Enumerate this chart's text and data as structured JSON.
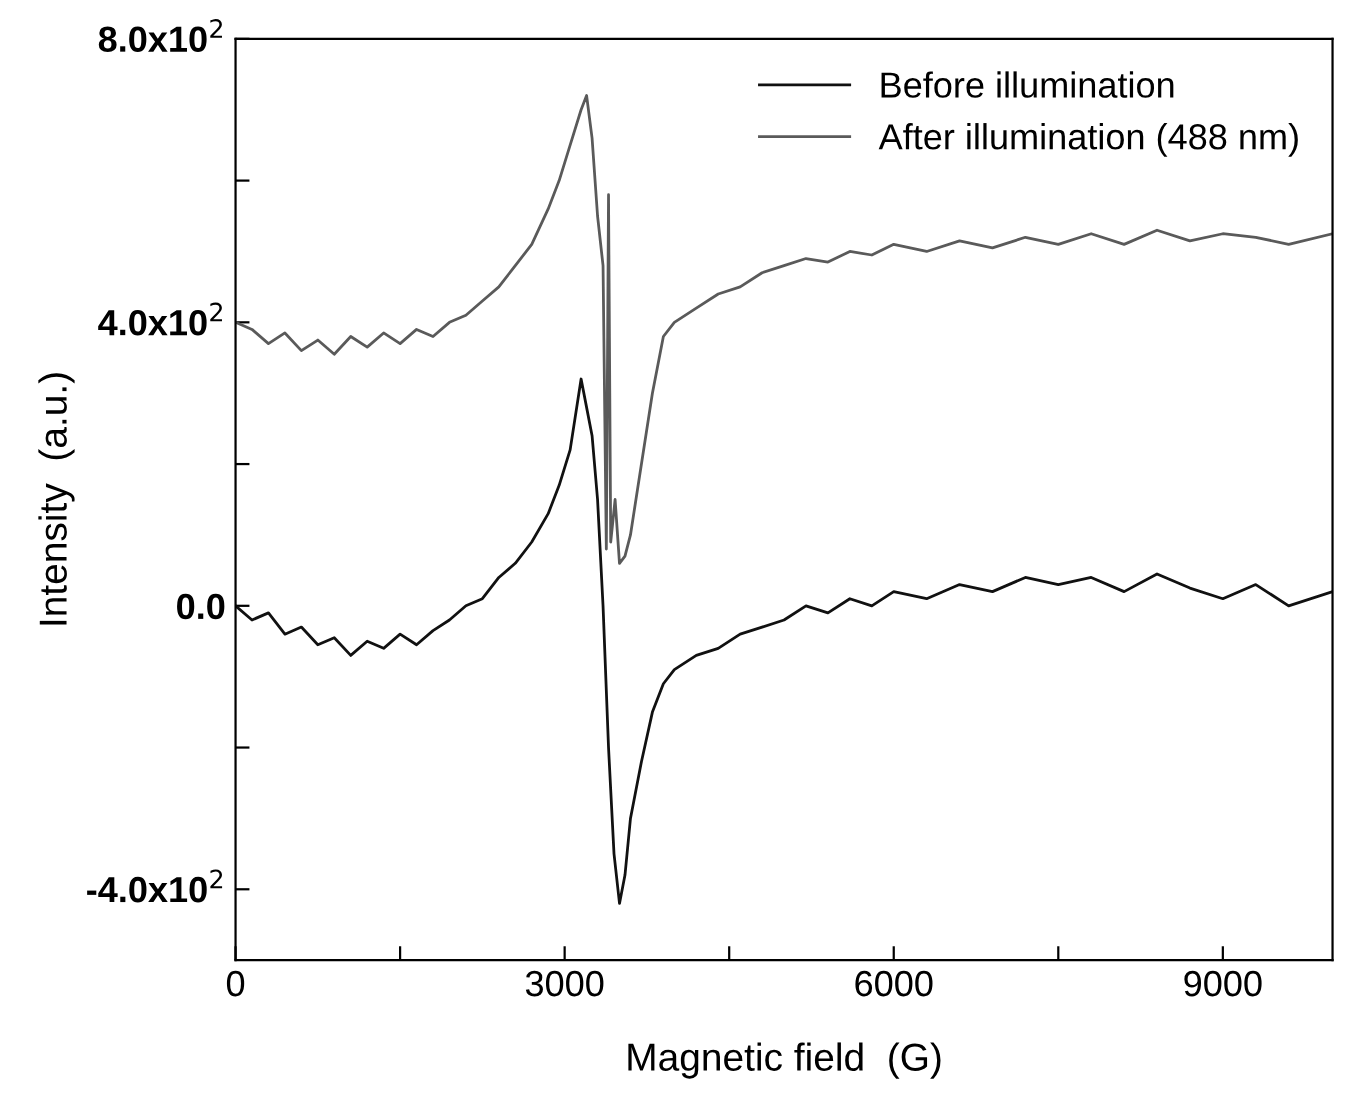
{
  "chart_data": {
    "type": "line",
    "xlabel": "Magnetic field  (G)",
    "ylabel": "Intensity  (a.u.)",
    "xlim": [
      0,
      10000
    ],
    "ylim": [
      -500,
      800
    ],
    "xticks": [
      0,
      {
        "value": 1500,
        "label": null
      },
      3000,
      {
        "value": 4500,
        "label": null
      },
      6000,
      {
        "value": 7500,
        "label": null
      },
      9000
    ],
    "yticks": [
      {
        "value": -400,
        "label": "-4.0x10$^{2}$"
      },
      {
        "value": -200,
        "label": null
      },
      {
        "value": 0,
        "label": "0.0"
      },
      {
        "value": 200,
        "label": null
      },
      {
        "value": 400,
        "label": "4.0x10$^{2}$"
      },
      {
        "value": 600,
        "label": null
      },
      {
        "value": 800,
        "label": "8.0x10$^{2}$"
      }
    ],
    "grid": false,
    "legend": "top right",
    "marker": "none",
    "line_style": "solid",
    "series": [
      {
        "name": "Before illumination",
        "color": "#111111",
        "x": [
          0,
          150,
          300,
          450,
          600,
          750,
          900,
          1050,
          1200,
          1350,
          1500,
          1650,
          1800,
          1950,
          2100,
          2250,
          2400,
          2550,
          2700,
          2850,
          2950,
          3050,
          3150,
          3200,
          3250,
          3300,
          3350,
          3400,
          3450,
          3500,
          3550,
          3600,
          3700,
          3800,
          3900,
          4000,
          4200,
          4400,
          4600,
          4800,
          5000,
          5200,
          5400,
          5600,
          5800,
          6000,
          6300,
          6600,
          6900,
          7200,
          7500,
          7800,
          8100,
          8400,
          8700,
          9000,
          9300,
          9600,
          10000
        ],
        "values": [
          0,
          -20,
          -10,
          -40,
          -30,
          -55,
          -45,
          -70,
          -50,
          -60,
          -40,
          -55,
          -35,
          -20,
          0,
          10,
          40,
          60,
          90,
          130,
          170,
          220,
          320,
          280,
          240,
          150,
          0,
          -200,
          -350,
          -420,
          -380,
          -300,
          -220,
          -150,
          -110,
          -90,
          -70,
          -60,
          -40,
          -30,
          -20,
          0,
          -10,
          10,
          0,
          20,
          10,
          30,
          20,
          40,
          30,
          40,
          20,
          45,
          25,
          10,
          30,
          0,
          20
        ]
      },
      {
        "name": "After illumination (488 nm)",
        "color": "#5a5a5a",
        "x": [
          0,
          150,
          300,
          450,
          600,
          750,
          900,
          1050,
          1200,
          1350,
          1500,
          1650,
          1800,
          1950,
          2100,
          2250,
          2400,
          2550,
          2700,
          2850,
          2950,
          3050,
          3150,
          3200,
          3250,
          3300,
          3350,
          3380,
          3400,
          3420,
          3460,
          3500,
          3550,
          3600,
          3700,
          3800,
          3900,
          4000,
          4200,
          4400,
          4600,
          4800,
          5000,
          5200,
          5400,
          5600,
          5800,
          6000,
          6300,
          6600,
          6900,
          7200,
          7500,
          7800,
          8100,
          8400,
          8700,
          9000,
          9300,
          9600,
          10000
        ],
        "values": [
          400,
          390,
          370,
          385,
          360,
          375,
          355,
          380,
          365,
          385,
          370,
          390,
          380,
          400,
          410,
          430,
          450,
          480,
          510,
          560,
          600,
          650,
          700,
          720,
          660,
          550,
          480,
          80,
          580,
          90,
          150,
          60,
          70,
          100,
          200,
          300,
          380,
          400,
          420,
          440,
          450,
          470,
          480,
          490,
          485,
          500,
          495,
          510,
          500,
          515,
          505,
          520,
          510,
          525,
          510,
          530,
          515,
          525,
          520,
          510,
          525
        ]
      }
    ]
  }
}
